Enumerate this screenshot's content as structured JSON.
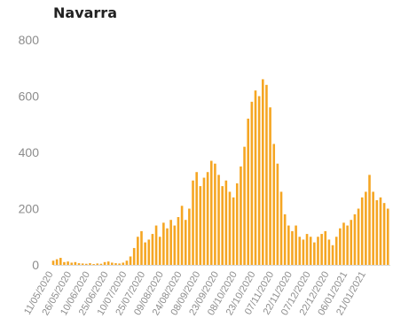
{
  "chart_data": {
    "type": "bar",
    "title": "Navarra",
    "xlabel": "",
    "ylabel": "",
    "ylim": [
      0,
      800
    ],
    "yticks": [
      0,
      200,
      400,
      600,
      800
    ],
    "grid": false,
    "legend": "none",
    "bar_color": "#f5a623",
    "axis_line_color": "#d9d9d9",
    "tick_text_color": "#8c8c8c",
    "x_start": "2020-05-11",
    "x_end": "2021-02-10",
    "x_tick_labels": [
      "11/05/2020",
      "26/05/2020",
      "10/06/2020",
      "25/06/2020",
      "10/07/2020",
      "25/07/2020",
      "09/08/2020",
      "24/08/2020",
      "08/09/2020",
      "23/09/2020",
      "08/10/2020",
      "23/10/2020",
      "07/11/2020",
      "22/11/2020",
      "07/12/2020",
      "22/12/2020",
      "06/01/2021",
      "21/01/2021"
    ],
    "series": [
      {
        "x": [
          "2020-05-11",
          "2020-05-14",
          "2020-05-17",
          "2020-05-20",
          "2020-05-23",
          "2020-05-26",
          "2020-05-29",
          "2020-06-01",
          "2020-06-04",
          "2020-06-07",
          "2020-06-10",
          "2020-06-13",
          "2020-06-16",
          "2020-06-19",
          "2020-06-22",
          "2020-06-25",
          "2020-06-28",
          "2020-07-01",
          "2020-07-04",
          "2020-07-07",
          "2020-07-10",
          "2020-07-13",
          "2020-07-16",
          "2020-07-19",
          "2020-07-22",
          "2020-07-25",
          "2020-07-28",
          "2020-07-31",
          "2020-08-03",
          "2020-08-06",
          "2020-08-09",
          "2020-08-12",
          "2020-08-15",
          "2020-08-18",
          "2020-08-21",
          "2020-08-24",
          "2020-08-27",
          "2020-08-30",
          "2020-09-02",
          "2020-09-05",
          "2020-09-08",
          "2020-09-11",
          "2020-09-14",
          "2020-09-17",
          "2020-09-20",
          "2020-09-23",
          "2020-09-26",
          "2020-09-29",
          "2020-10-02",
          "2020-10-05",
          "2020-10-08",
          "2020-10-11",
          "2020-10-14",
          "2020-10-17",
          "2020-10-20",
          "2020-10-23",
          "2020-10-26",
          "2020-10-29",
          "2020-11-01",
          "2020-11-04",
          "2020-11-07",
          "2020-11-10",
          "2020-11-13",
          "2020-11-16",
          "2020-11-19",
          "2020-11-22",
          "2020-11-25",
          "2020-11-28",
          "2020-12-01",
          "2020-12-04",
          "2020-12-07",
          "2020-12-10",
          "2020-12-13",
          "2020-12-16",
          "2020-12-19",
          "2020-12-22",
          "2020-12-25",
          "2020-12-28",
          "2020-12-31",
          "2021-01-03",
          "2021-01-06",
          "2021-01-09",
          "2021-01-12",
          "2021-01-15",
          "2021-01-18",
          "2021-01-21",
          "2021-01-24",
          "2021-01-27",
          "2021-01-30",
          "2021-02-02",
          "2021-02-05",
          "2021-02-08"
        ],
        "y": [
          15,
          20,
          25,
          10,
          12,
          8,
          10,
          6,
          5,
          4,
          6,
          3,
          5,
          4,
          10,
          12,
          8,
          6,
          5,
          8,
          15,
          30,
          60,
          100,
          120,
          80,
          90,
          110,
          140,
          100,
          150,
          130,
          160,
          140,
          170,
          210,
          160,
          200,
          300,
          330,
          280,
          310,
          330,
          370,
          360,
          320,
          280,
          300,
          260,
          240,
          290,
          350,
          420,
          520,
          580,
          620,
          600,
          660,
          640,
          560,
          430,
          360,
          260,
          180,
          140,
          120,
          140,
          100,
          90,
          110,
          100,
          80,
          100,
          110,
          120,
          90,
          70,
          100,
          130,
          150,
          140,
          160,
          180,
          200,
          240,
          260,
          320,
          260,
          230,
          240,
          220,
          200
        ]
      }
    ]
  }
}
